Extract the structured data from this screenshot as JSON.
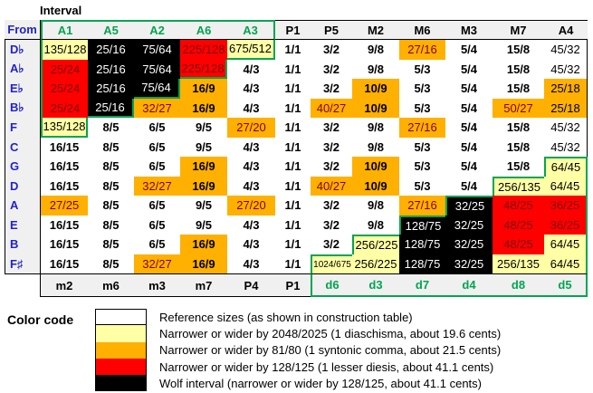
{
  "labels": {
    "interval": "Interval",
    "from": "From",
    "color_code": "Color code"
  },
  "colors": {
    "white": "#FFFFFF",
    "pale_yellow": "#FFFFA6",
    "orange": "#FFB000",
    "red": "#FF0000",
    "black": "#000000",
    "maroon_text": "#800000",
    "green": "#00A550",
    "blue_labels": "#2222CC",
    "header_bg": "#F0F0F0"
  },
  "style_key": {
    "w": "white bg, bold black text (reference size)",
    "wn": "white bg, normal black text",
    "y": "pale yellow bg (off by 1 diaschisma)",
    "ys": "pale yellow bg, small text",
    "o": "orange bg, bold black text (off by 1 syntonic comma)",
    "on": "orange bg, normal black text",
    "om": "orange bg, dark red text",
    "k": "black bg, white text (wolf interval)",
    "r": "red bg, dark red text (off by 1 lesser diesis)"
  },
  "chart_data": {
    "type": "table",
    "title": "Interval",
    "row_axis_label": "From",
    "top_headers": [
      [
        "A1",
        true,
        "tl"
      ],
      [
        "A5",
        true,
        "t"
      ],
      [
        "A2",
        true,
        "t"
      ],
      [
        "A6",
        true,
        "t"
      ],
      [
        "A3",
        true,
        "tr"
      ],
      [
        "P1",
        false,
        ""
      ],
      [
        "P5",
        false,
        ""
      ],
      [
        "M2",
        false,
        ""
      ],
      [
        "M6",
        false,
        ""
      ],
      [
        "M3",
        false,
        ""
      ],
      [
        "M7",
        false,
        ""
      ],
      [
        "A4",
        false,
        ""
      ]
    ],
    "bottom_headers": [
      [
        "m2",
        false,
        ""
      ],
      [
        "m6",
        false,
        ""
      ],
      [
        "m3",
        false,
        ""
      ],
      [
        "m7",
        false,
        ""
      ],
      [
        "P4",
        false,
        ""
      ],
      [
        "P1",
        false,
        ""
      ],
      [
        "d6",
        true,
        "lb"
      ],
      [
        "d3",
        true,
        "b"
      ],
      [
        "d7",
        true,
        "b"
      ],
      [
        "d4",
        true,
        "b"
      ],
      [
        "d8",
        true,
        "b"
      ],
      [
        "d5",
        true,
        "br"
      ]
    ],
    "rows": [
      {
        "note": "D♭",
        "cells": [
          [
            "135/128",
            "y",
            "l"
          ],
          [
            "25/16",
            "k",
            ""
          ],
          [
            "75/64",
            "k",
            ""
          ],
          [
            "225/128",
            "r",
            ""
          ],
          [
            "675/512",
            "y",
            "rb"
          ],
          [
            "1/1",
            "w",
            ""
          ],
          [
            "3/2",
            "w",
            ""
          ],
          [
            "9/8",
            "w",
            ""
          ],
          [
            "27/16",
            "om",
            ""
          ],
          [
            "5/4",
            "w",
            ""
          ],
          [
            "15/8",
            "w",
            ""
          ],
          [
            "45/32",
            "wn",
            ""
          ]
        ]
      },
      {
        "note": "A♭",
        "cells": [
          [
            "25/24",
            "r",
            "l"
          ],
          [
            "25/16",
            "k",
            ""
          ],
          [
            "75/64",
            "k",
            ""
          ],
          [
            "225/128",
            "r",
            "rb"
          ],
          [
            "4/3",
            "w",
            ""
          ],
          [
            "1/1",
            "w",
            ""
          ],
          [
            "3/2",
            "w",
            ""
          ],
          [
            "9/8",
            "w",
            ""
          ],
          [
            "5/3",
            "w",
            ""
          ],
          [
            "5/4",
            "w",
            ""
          ],
          [
            "15/8",
            "w",
            ""
          ],
          [
            "45/32",
            "wn",
            ""
          ]
        ]
      },
      {
        "note": "E♭",
        "cells": [
          [
            "25/24",
            "r",
            "l"
          ],
          [
            "25/16",
            "k",
            ""
          ],
          [
            "75/64",
            "k",
            "rb"
          ],
          [
            "16/9",
            "o",
            ""
          ],
          [
            "4/3",
            "w",
            ""
          ],
          [
            "1/1",
            "w",
            ""
          ],
          [
            "3/2",
            "w",
            ""
          ],
          [
            "10/9",
            "o",
            ""
          ],
          [
            "5/3",
            "w",
            ""
          ],
          [
            "5/4",
            "w",
            ""
          ],
          [
            "15/8",
            "w",
            ""
          ],
          [
            "25/18",
            "on",
            ""
          ]
        ]
      },
      {
        "note": "B♭",
        "cells": [
          [
            "25/24",
            "r",
            "l"
          ],
          [
            "25/16",
            "k",
            "rb"
          ],
          [
            "32/27",
            "om",
            ""
          ],
          [
            "16/9",
            "o",
            ""
          ],
          [
            "4/3",
            "w",
            ""
          ],
          [
            "1/1",
            "w",
            ""
          ],
          [
            "40/27",
            "om",
            ""
          ],
          [
            "10/9",
            "o",
            ""
          ],
          [
            "5/3",
            "w",
            ""
          ],
          [
            "5/4",
            "w",
            ""
          ],
          [
            "50/27",
            "om",
            ""
          ],
          [
            "25/18",
            "on",
            ""
          ]
        ]
      },
      {
        "note": "F",
        "cells": [
          [
            "135/128",
            "y",
            "lrb"
          ],
          [
            "8/5",
            "w",
            ""
          ],
          [
            "6/5",
            "w",
            ""
          ],
          [
            "9/5",
            "w",
            ""
          ],
          [
            "27/20",
            "om",
            ""
          ],
          [
            "1/1",
            "w",
            ""
          ],
          [
            "3/2",
            "w",
            ""
          ],
          [
            "9/8",
            "w",
            ""
          ],
          [
            "27/16",
            "om",
            ""
          ],
          [
            "5/4",
            "w",
            ""
          ],
          [
            "15/8",
            "w",
            ""
          ],
          [
            "45/32",
            "wn",
            ""
          ]
        ]
      },
      {
        "note": "C",
        "cells": [
          [
            "16/15",
            "w",
            ""
          ],
          [
            "8/5",
            "w",
            ""
          ],
          [
            "6/5",
            "w",
            ""
          ],
          [
            "9/5",
            "w",
            ""
          ],
          [
            "4/3",
            "w",
            ""
          ],
          [
            "1/1",
            "w",
            ""
          ],
          [
            "3/2",
            "w",
            ""
          ],
          [
            "9/8",
            "w",
            ""
          ],
          [
            "5/3",
            "w",
            ""
          ],
          [
            "5/4",
            "w",
            ""
          ],
          [
            "15/8",
            "w",
            ""
          ],
          [
            "45/32",
            "wn",
            ""
          ]
        ]
      },
      {
        "note": "G",
        "cells": [
          [
            "16/15",
            "w",
            ""
          ],
          [
            "8/5",
            "w",
            ""
          ],
          [
            "6/5",
            "w",
            ""
          ],
          [
            "16/9",
            "o",
            ""
          ],
          [
            "4/3",
            "w",
            ""
          ],
          [
            "1/1",
            "w",
            ""
          ],
          [
            "3/2",
            "w",
            ""
          ],
          [
            "10/9",
            "o",
            ""
          ],
          [
            "5/3",
            "w",
            ""
          ],
          [
            "5/4",
            "w",
            ""
          ],
          [
            "15/8",
            "w",
            ""
          ],
          [
            "64/45",
            "y",
            "tlr"
          ]
        ]
      },
      {
        "note": "D",
        "cells": [
          [
            "16/15",
            "w",
            ""
          ],
          [
            "8/5",
            "w",
            ""
          ],
          [
            "32/27",
            "om",
            ""
          ],
          [
            "16/9",
            "o",
            ""
          ],
          [
            "4/3",
            "w",
            ""
          ],
          [
            "1/1",
            "w",
            ""
          ],
          [
            "40/27",
            "om",
            ""
          ],
          [
            "10/9",
            "o",
            ""
          ],
          [
            "5/3",
            "w",
            ""
          ],
          [
            "5/4",
            "w",
            ""
          ],
          [
            "256/135",
            "y",
            "tl"
          ],
          [
            "64/45",
            "y",
            "r"
          ]
        ]
      },
      {
        "note": "A",
        "cells": [
          [
            "27/25",
            "om",
            ""
          ],
          [
            "8/5",
            "w",
            ""
          ],
          [
            "6/5",
            "w",
            ""
          ],
          [
            "9/5",
            "w",
            ""
          ],
          [
            "27/20",
            "om",
            ""
          ],
          [
            "1/1",
            "w",
            ""
          ],
          [
            "3/2",
            "w",
            ""
          ],
          [
            "9/8",
            "w",
            ""
          ],
          [
            "27/16",
            "om",
            ""
          ],
          [
            "32/25",
            "k",
            "tl"
          ],
          [
            "48/25",
            "r",
            ""
          ],
          [
            "36/25",
            "r",
            "r"
          ]
        ]
      },
      {
        "note": "E",
        "cells": [
          [
            "16/15",
            "w",
            ""
          ],
          [
            "8/5",
            "w",
            ""
          ],
          [
            "6/5",
            "w",
            ""
          ],
          [
            "9/5",
            "w",
            ""
          ],
          [
            "4/3",
            "w",
            ""
          ],
          [
            "1/1",
            "w",
            ""
          ],
          [
            "3/2",
            "w",
            ""
          ],
          [
            "9/8",
            "w",
            ""
          ],
          [
            "128/75",
            "k",
            "tl"
          ],
          [
            "32/25",
            "k",
            ""
          ],
          [
            "48/25",
            "r",
            ""
          ],
          [
            "36/25",
            "r",
            "r"
          ]
        ]
      },
      {
        "note": "B",
        "cells": [
          [
            "16/15",
            "w",
            ""
          ],
          [
            "8/5",
            "w",
            ""
          ],
          [
            "6/5",
            "w",
            ""
          ],
          [
            "16/9",
            "o",
            ""
          ],
          [
            "4/3",
            "w",
            ""
          ],
          [
            "1/1",
            "w",
            ""
          ],
          [
            "3/2",
            "w",
            ""
          ],
          [
            "256/225",
            "y",
            "tl"
          ],
          [
            "128/75",
            "k",
            ""
          ],
          [
            "32/25",
            "k",
            ""
          ],
          [
            "48/25",
            "r",
            ""
          ],
          [
            "64/45",
            "y",
            "r"
          ]
        ]
      },
      {
        "note": "F♯",
        "cells": [
          [
            "16/15",
            "w",
            ""
          ],
          [
            "8/5",
            "w",
            ""
          ],
          [
            "32/27",
            "om",
            ""
          ],
          [
            "16/9",
            "o",
            ""
          ],
          [
            "4/3",
            "w",
            ""
          ],
          [
            "1/1",
            "w",
            ""
          ],
          [
            "1024/675",
            "ys",
            "tl"
          ],
          [
            "256/225",
            "y",
            ""
          ],
          [
            "128/75",
            "k",
            ""
          ],
          [
            "32/25",
            "k",
            ""
          ],
          [
            "256/135",
            "y",
            ""
          ],
          [
            "64/45",
            "y",
            "r"
          ]
        ]
      }
    ],
    "legend": [
      {
        "swatch": "white",
        "label": "Reference sizes (as shown in construction table)"
      },
      {
        "swatch": "pale_yellow",
        "label": "Narrower or wider by 2048/2025 (1 diaschisma, about 19.6 cents)"
      },
      {
        "swatch": "orange",
        "label": "Narrower or wider by 81/80 (1 syntonic comma, about 21.5 cents)"
      },
      {
        "swatch": "red",
        "label": "Narrower or wider by 128/125 (1 lesser diesis, about 41.1 cents)"
      },
      {
        "swatch": "black",
        "label": "Wolf interval (narrower or wider by 128/125, about 41.1 cents)"
      }
    ]
  }
}
